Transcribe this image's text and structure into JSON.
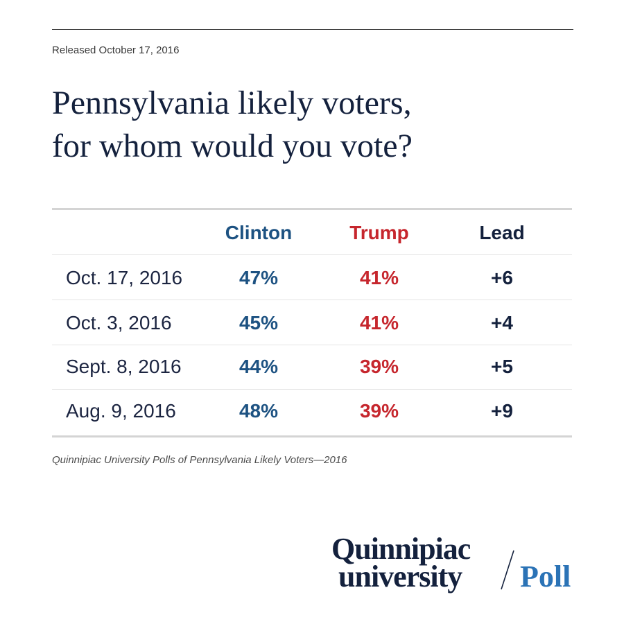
{
  "header": {
    "released": "Released October 17, 2016",
    "title_line1": "Pennsylvania likely voters,",
    "title_line2": "for whom would you vote?"
  },
  "colors": {
    "clinton": "#1d5282",
    "trump": "#c6262d",
    "lead": "#14213d",
    "title": "#14213d",
    "poll_blue": "#2b73b6"
  },
  "chart_data": {
    "type": "table",
    "columns": [
      "Clinton",
      "Trump",
      "Lead"
    ],
    "rows": [
      {
        "date": "Oct. 17, 2016",
        "clinton": "47%",
        "trump": "41%",
        "lead": "+6"
      },
      {
        "date": "Oct. 3, 2016",
        "clinton": "45%",
        "trump": "41%",
        "lead": "+4"
      },
      {
        "date": "Sept. 8, 2016",
        "clinton": "44%",
        "trump": "39%",
        "lead": "+5"
      },
      {
        "date": "Aug. 9, 2016",
        "clinton": "48%",
        "trump": "39%",
        "lead": "+9"
      }
    ]
  },
  "footer": {
    "source": "Quinnipiac University Polls of Pennsylvania Likely Voters—2016"
  },
  "logo": {
    "line1": "Quinnipiac",
    "line2": "university",
    "poll": "Poll"
  }
}
